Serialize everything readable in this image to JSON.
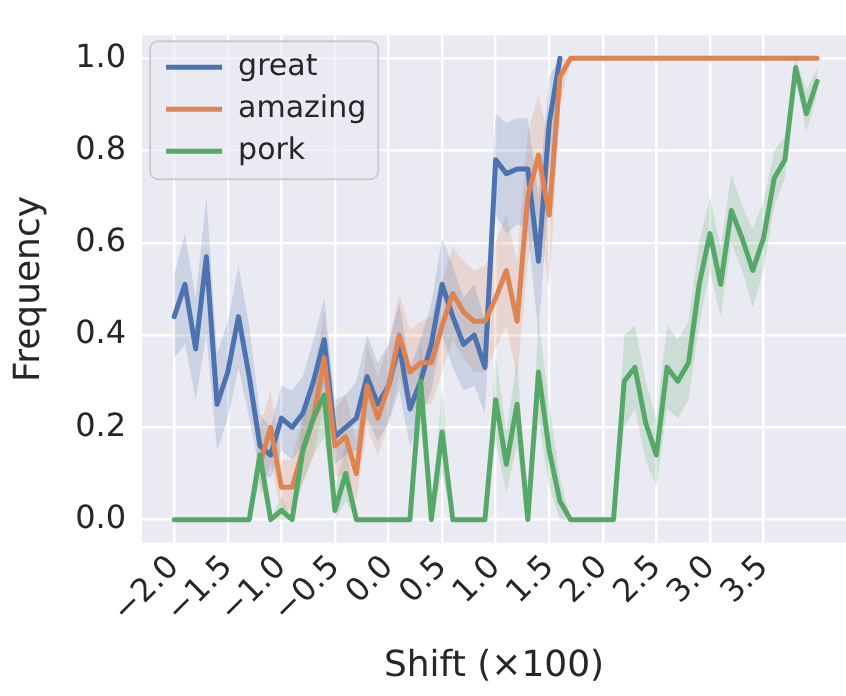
{
  "chart_data": {
    "type": "line",
    "xlabel": "Shift (×100)",
    "ylabel": "Frequency",
    "x": [
      -2.0,
      -1.9,
      -1.8,
      -1.7,
      -1.6,
      -1.5,
      -1.4,
      -1.3,
      -1.2,
      -1.1,
      -1.0,
      -0.9,
      -0.8,
      -0.7,
      -0.6,
      -0.5,
      -0.4,
      -0.3,
      -0.2,
      -0.1,
      0.0,
      0.1,
      0.2,
      0.3,
      0.4,
      0.5,
      0.6,
      0.7,
      0.8,
      0.9,
      1.0,
      1.1,
      1.2,
      1.3,
      1.4,
      1.5,
      1.6,
      1.7,
      1.8,
      1.9,
      2.0,
      2.1,
      2.2,
      2.3,
      2.4,
      2.5,
      2.6,
      2.7,
      2.8,
      2.9,
      3.0,
      3.1,
      3.2,
      3.3,
      3.4,
      3.5,
      3.6,
      3.7,
      3.8,
      3.9,
      4.0
    ],
    "series": [
      {
        "name": "great",
        "color": "#4c72b0",
        "values": [
          0.44,
          0.51,
          0.37,
          0.57,
          0.25,
          0.32,
          0.44,
          0.31,
          0.16,
          0.14,
          0.22,
          0.2,
          0.23,
          0.3,
          0.39,
          0.18,
          0.2,
          0.22,
          0.31,
          0.25,
          0.29,
          0.38,
          0.24,
          0.3,
          0.38,
          0.51,
          0.44,
          0.38,
          0.4,
          0.33,
          0.78,
          0.75,
          0.76,
          0.76,
          0.56,
          0.86,
          1,
          null,
          null,
          null,
          null,
          null,
          null,
          null,
          null,
          null,
          null,
          null,
          null,
          null,
          null,
          null,
          null,
          null,
          null,
          null,
          null,
          null,
          null,
          null,
          null
        ],
        "lower": [
          0.35,
          0.38,
          0.26,
          0.4,
          0.15,
          0.22,
          0.33,
          0.22,
          0.1,
          0.09,
          0.15,
          0.13,
          0.16,
          0.21,
          0.29,
          0.12,
          0.14,
          0.15,
          0.22,
          0.17,
          0.21,
          0.28,
          0.16,
          0.22,
          0.28,
          0.4,
          0.33,
          0.28,
          0.29,
          0.23,
          0.66,
          0.62,
          0.64,
          0.63,
          0.4,
          0.72,
          1,
          null,
          null,
          null,
          null,
          null,
          null,
          null,
          null,
          null,
          null,
          null,
          null,
          null,
          null,
          null,
          null,
          null,
          null,
          null,
          null,
          null,
          null,
          null,
          null
        ],
        "upper": [
          0.53,
          0.62,
          0.48,
          0.7,
          0.36,
          0.43,
          0.55,
          0.42,
          0.23,
          0.2,
          0.29,
          0.28,
          0.31,
          0.39,
          0.48,
          0.26,
          0.27,
          0.3,
          0.4,
          0.34,
          0.38,
          0.47,
          0.33,
          0.39,
          0.47,
          0.61,
          0.55,
          0.48,
          0.51,
          0.43,
          0.88,
          0.86,
          0.87,
          0.87,
          0.7,
          0.96,
          1,
          null,
          null,
          null,
          null,
          null,
          null,
          null,
          null,
          null,
          null,
          null,
          null,
          null,
          null,
          null,
          null,
          null,
          null,
          null,
          null,
          null,
          null,
          null,
          null
        ]
      },
      {
        "name": "amazing",
        "color": "#dd8452",
        "values": [
          null,
          null,
          null,
          null,
          null,
          null,
          null,
          null,
          0.12,
          0.2,
          0.07,
          0.07,
          0.15,
          0.22,
          0.35,
          0.16,
          0.18,
          0.1,
          0.29,
          0.22,
          0.29,
          0.4,
          0.32,
          0.34,
          0.34,
          0.42,
          0.49,
          0.45,
          0.43,
          0.43,
          0.48,
          0.54,
          0.43,
          0.7,
          0.79,
          0.66,
          0.96,
          1,
          1,
          1,
          1,
          1,
          1,
          1,
          1,
          1,
          1,
          1,
          1,
          1,
          1,
          1,
          1,
          1,
          1,
          1,
          1,
          1,
          1,
          1,
          1
        ],
        "lower": [
          null,
          null,
          null,
          null,
          null,
          null,
          null,
          null,
          0.05,
          0.12,
          0.02,
          0.02,
          0.08,
          0.14,
          0.25,
          0.09,
          0.1,
          0.04,
          0.2,
          0.14,
          0.21,
          0.31,
          0.23,
          0.25,
          0.25,
          0.32,
          0.39,
          0.35,
          0.32,
          0.32,
          0.37,
          0.42,
          0.31,
          0.56,
          0.66,
          0.5,
          0.9,
          1,
          1,
          1,
          1,
          1,
          1,
          1,
          1,
          1,
          1,
          1,
          1,
          1,
          1,
          1,
          1,
          1,
          1,
          1,
          1,
          1,
          1,
          1,
          1
        ],
        "upper": [
          null,
          null,
          null,
          null,
          null,
          null,
          null,
          null,
          0.2,
          0.28,
          0.13,
          0.13,
          0.23,
          0.31,
          0.45,
          0.24,
          0.27,
          0.17,
          0.38,
          0.31,
          0.38,
          0.49,
          0.41,
          0.43,
          0.44,
          0.52,
          0.59,
          0.56,
          0.54,
          0.55,
          0.6,
          0.66,
          0.56,
          0.84,
          0.92,
          0.82,
          1.0,
          1,
          1,
          1,
          1,
          1,
          1,
          1,
          1,
          1,
          1,
          1,
          1,
          1,
          1,
          1,
          1,
          1,
          1,
          1,
          1,
          1,
          1,
          1,
          1
        ]
      },
      {
        "name": "pork",
        "color": "#55a868",
        "values": [
          0,
          0,
          0,
          0,
          0,
          0,
          0,
          0,
          0.14,
          0,
          0.02,
          0,
          0.15,
          0.22,
          0.27,
          0.02,
          0.1,
          0,
          0,
          0,
          0,
          0,
          0,
          0.3,
          0,
          0.19,
          0,
          0,
          0,
          0,
          0.26,
          0.12,
          0.25,
          0,
          0.32,
          0.15,
          0.04,
          0,
          0,
          0,
          0,
          0,
          0.3,
          0.33,
          0.21,
          0.14,
          0.33,
          0.3,
          0.34,
          0.51,
          0.62,
          0.51,
          0.67,
          0.61,
          0.54,
          0.61,
          0.74,
          0.78,
          0.98,
          0.88,
          0.95
        ],
        "lower": [
          0,
          0,
          0,
          0,
          0,
          0,
          0,
          0,
          0.08,
          0,
          0,
          0,
          0.08,
          0.14,
          0.18,
          0,
          0.04,
          0,
          0,
          0,
          0,
          0,
          0,
          0.2,
          0,
          0.1,
          0,
          0,
          0,
          0,
          0.17,
          0.06,
          0.16,
          0,
          0.22,
          0.07,
          0,
          0,
          0,
          0,
          0,
          0,
          0.2,
          0.24,
          0.13,
          0.07,
          0.24,
          0.22,
          0.26,
          0.42,
          0.54,
          0.44,
          0.6,
          0.54,
          0.46,
          0.54,
          0.68,
          0.74,
          0.96,
          0.84,
          0.92
        ],
        "upper": [
          0,
          0,
          0,
          0,
          0,
          0,
          0,
          0,
          0.2,
          0,
          0.05,
          0,
          0.23,
          0.31,
          0.36,
          0.06,
          0.17,
          0,
          0,
          0,
          0,
          0,
          0,
          0.4,
          0,
          0.29,
          0,
          0,
          0,
          0,
          0.36,
          0.19,
          0.35,
          0,
          0.43,
          0.25,
          0.09,
          0,
          0,
          0,
          0,
          0,
          0.4,
          0.42,
          0.3,
          0.22,
          0.42,
          0.39,
          0.43,
          0.6,
          0.7,
          0.59,
          0.75,
          0.68,
          0.63,
          0.69,
          0.8,
          0.83,
          1.0,
          0.93,
          0.98
        ]
      }
    ],
    "xlim": [
      -2.3,
      4.27
    ],
    "ylim": [
      -0.05,
      1.05
    ],
    "xticks": [
      {
        "value": -2,
        "label": "−2.0"
      },
      {
        "value": -1.5,
        "label": "−1.5"
      },
      {
        "value": -1,
        "label": "−1.0"
      },
      {
        "value": -0.5,
        "label": "−0.5"
      },
      {
        "value": 0,
        "label": "0.0"
      },
      {
        "value": 0.5,
        "label": "0.5"
      },
      {
        "value": 1,
        "label": "1.0"
      },
      {
        "value": 1.5,
        "label": "1.5"
      },
      {
        "value": 2,
        "label": "2.0"
      },
      {
        "value": 2.5,
        "label": "2.5"
      },
      {
        "value": 3,
        "label": "3.0"
      },
      {
        "value": 3.5,
        "label": "3.5"
      }
    ],
    "yticks": [
      {
        "value": 0,
        "label": "0.0"
      },
      {
        "value": 0.2,
        "label": "0.2"
      },
      {
        "value": 0.4,
        "label": "0.4"
      },
      {
        "value": 0.6,
        "label": "0.6"
      },
      {
        "value": 0.8,
        "label": "0.8"
      },
      {
        "value": 1,
        "label": "1.0"
      }
    ],
    "grid": true,
    "legend": "top left",
    "marker": "none",
    "line_style": "solid"
  }
}
